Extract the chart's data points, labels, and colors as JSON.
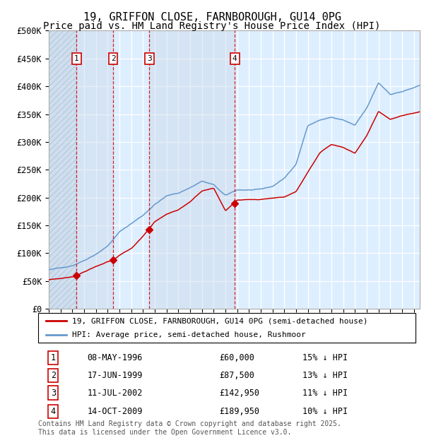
{
  "title": "19, GRIFFON CLOSE, FARNBOROUGH, GU14 0PG",
  "subtitle": "Price paid vs. HM Land Registry's House Price Index (HPI)",
  "ylim": [
    0,
    500000
  ],
  "yticks": [
    0,
    50000,
    100000,
    150000,
    200000,
    250000,
    300000,
    350000,
    400000,
    450000,
    500000
  ],
  "ytick_labels": [
    "£0",
    "£50K",
    "£100K",
    "£150K",
    "£200K",
    "£250K",
    "£300K",
    "£350K",
    "£400K",
    "£450K",
    "£500K"
  ],
  "price_color": "#cc0000",
  "hpi_color": "#6699cc",
  "background_color": "#ddeeff",
  "grid_color": "#ffffff",
  "vline_color": "#cc0000",
  "transactions": [
    {
      "date": 1996.36,
      "price": 60000,
      "label": "1",
      "date_str": "08-MAY-1996",
      "price_str": "£60,000",
      "hpi_str": "15% ↓ HPI"
    },
    {
      "date": 1999.46,
      "price": 87500,
      "label": "2",
      "date_str": "17-JUN-1999",
      "price_str": "£87,500",
      "hpi_str": "13% ↓ HPI"
    },
    {
      "date": 2002.53,
      "price": 142950,
      "label": "3",
      "date_str": "11-JUL-2002",
      "price_str": "£142,950",
      "hpi_str": "11% ↓ HPI"
    },
    {
      "date": 2009.79,
      "price": 189950,
      "label": "4",
      "date_str": "14-OCT-2009",
      "price_str": "£189,950",
      "hpi_str": "10% ↓ HPI"
    }
  ],
  "xmin": 1994.0,
  "xmax": 2025.5,
  "hpi_key_years": [
    1994.0,
    1995.0,
    1996.0,
    1997.0,
    1998.0,
    1999.0,
    2000.0,
    2001.0,
    2002.0,
    2003.0,
    2004.0,
    2005.0,
    2006.0,
    2007.0,
    2008.0,
    2009.0,
    2010.0,
    2011.0,
    2012.0,
    2013.0,
    2014.0,
    2015.0,
    2016.0,
    2017.0,
    2018.0,
    2019.0,
    2020.0,
    2021.0,
    2022.0,
    2023.0,
    2024.0,
    2025.5
  ],
  "hpi_key_vals": [
    70000,
    73000,
    78000,
    88000,
    100000,
    115000,
    140000,
    155000,
    170000,
    190000,
    205000,
    210000,
    220000,
    232000,
    225000,
    205000,
    215000,
    215000,
    215000,
    220000,
    235000,
    260000,
    330000,
    340000,
    345000,
    340000,
    330000,
    360000,
    405000,
    385000,
    390000,
    400000
  ],
  "price_key_years": [
    1994.0,
    1995.0,
    1996.2,
    1996.36,
    1996.6,
    1997.0,
    1998.0,
    1999.0,
    1999.46,
    1999.8,
    2000.0,
    2001.0,
    2002.0,
    2002.53,
    2003.0,
    2004.0,
    2005.0,
    2006.0,
    2007.0,
    2008.0,
    2009.0,
    2009.79,
    2010.0,
    2011.0,
    2012.0,
    2013.0,
    2014.0,
    2015.0,
    2016.0,
    2017.0,
    2018.0,
    2019.0,
    2020.0,
    2021.0,
    2022.0,
    2023.0,
    2024.0,
    2025.5
  ],
  "price_key_vals": [
    52000,
    54000,
    58000,
    60000,
    62000,
    66000,
    76000,
    84000,
    87500,
    92000,
    96000,
    108000,
    130000,
    142950,
    155000,
    168000,
    175000,
    190000,
    210000,
    215000,
    175000,
    189950,
    195000,
    196000,
    196000,
    198000,
    200000,
    210000,
    245000,
    278000,
    293000,
    288000,
    278000,
    310000,
    353000,
    338000,
    345000,
    352000
  ],
  "legend_price_label": "19, GRIFFON CLOSE, FARNBOROUGH, GU14 0PG (semi-detached house)",
  "legend_hpi_label": "HPI: Average price, semi-detached house, Rushmoor",
  "footnote": "Contains HM Land Registry data © Crown copyright and database right 2025.\nThis data is licensed under the Open Government Licence v3.0.",
  "title_fontsize": 11,
  "subtitle_fontsize": 10,
  "tick_fontsize": 8.5
}
